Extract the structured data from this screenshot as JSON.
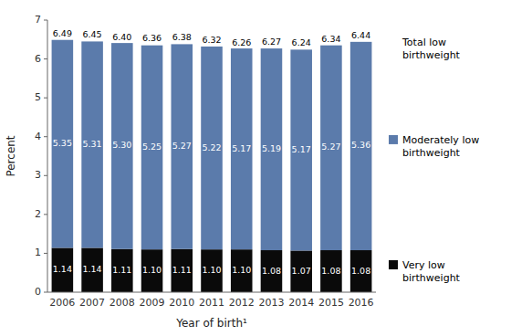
{
  "chart_data": {
    "type": "bar",
    "stacked": true,
    "xlabel": "Year of birth¹",
    "ylabel": "Percent",
    "categories": [
      "2006",
      "2007",
      "2008",
      "2009",
      "2010",
      "2011",
      "2012",
      "2013",
      "2014",
      "2015",
      "2016"
    ],
    "series": [
      {
        "name": "Very low\nbirthweight",
        "color": "#0a0a0a",
        "values": [
          1.14,
          1.14,
          1.11,
          1.1,
          1.11,
          1.1,
          1.1,
          1.08,
          1.07,
          1.08,
          1.08
        ],
        "value_labels": [
          "1.14",
          "1.14",
          "1.11",
          "1.10",
          "1.11",
          "1.10",
          "1.10",
          "1.08",
          "1.07",
          "1.08",
          "1.08"
        ]
      },
      {
        "name": "Moderately low\nbirthweight",
        "color": "#5b7bab",
        "values": [
          5.35,
          5.31,
          5.3,
          5.25,
          5.27,
          5.22,
          5.17,
          5.19,
          5.17,
          5.27,
          5.36
        ],
        "value_labels": [
          "5.35",
          "5.31",
          "5.30",
          "5.25",
          "5.27",
          "5.22",
          "5.17",
          "5.19",
          "5.17",
          "5.27",
          "5.36"
        ]
      }
    ],
    "totals": {
      "name": "Total low\nbirthweight",
      "values": [
        6.49,
        6.45,
        6.4,
        6.36,
        6.38,
        6.32,
        6.26,
        6.27,
        6.24,
        6.34,
        6.44
      ],
      "value_labels": [
        "6.49",
        "6.45",
        "6.40",
        "6.36",
        "6.38",
        "6.32",
        "6.26",
        "6.27",
        "6.24",
        "6.34",
        "6.44"
      ]
    },
    "data_labels": true,
    "legend": "right",
    "grid": false,
    "ylim": [
      0,
      7
    ],
    "yticks": [
      0,
      1,
      2,
      3,
      4,
      5,
      6,
      7
    ]
  }
}
